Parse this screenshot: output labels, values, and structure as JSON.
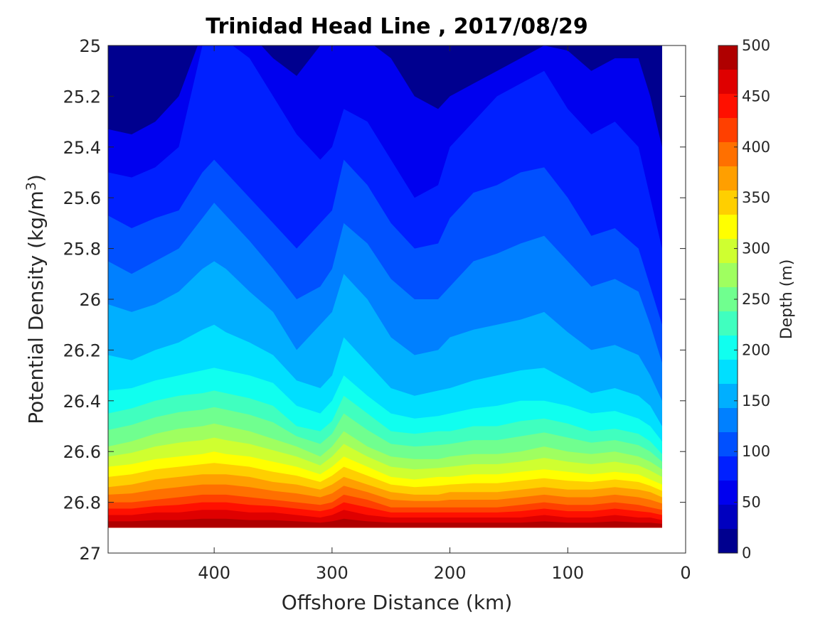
{
  "chart_data": {
    "type": "contour",
    "title": "Trinidad Head Line , 2017/08/29",
    "xlabel": "Offshore Distance (km)",
    "ylabel_main": "Potential Density (kg/m",
    "ylabel_sup": "3",
    "ylabel_close": ")",
    "colorbar_label": "Depth (m)",
    "xlim": [
      490,
      0
    ],
    "x_reversed": true,
    "x_ticks": [
      {
        "value": 400,
        "label": "400"
      },
      {
        "value": 300,
        "label": "300"
      },
      {
        "value": 200,
        "label": "200"
      },
      {
        "value": 100,
        "label": "100"
      },
      {
        "value": 0,
        "label": "0"
      }
    ],
    "ylim": [
      25,
      27
    ],
    "y_reversed": true,
    "y_ticks": [
      {
        "value": 25,
        "label": "25"
      },
      {
        "value": 25.2,
        "label": "25.2"
      },
      {
        "value": 25.4,
        "label": "25.4"
      },
      {
        "value": 25.6,
        "label": "25.6"
      },
      {
        "value": 25.8,
        "label": "25.8"
      },
      {
        "value": 26,
        "label": "26"
      },
      {
        "value": 26.2,
        "label": "26.2"
      },
      {
        "value": 26.4,
        "label": "26.4"
      },
      {
        "value": 26.6,
        "label": "26.6"
      },
      {
        "value": 26.8,
        "label": "26.8"
      },
      {
        "value": 27,
        "label": "27"
      }
    ],
    "colorbar_range": [
      0,
      500
    ],
    "colorbar_ticks": [
      {
        "value": 0,
        "label": "0"
      },
      {
        "value": 50,
        "label": "50"
      },
      {
        "value": 100,
        "label": "100"
      },
      {
        "value": 150,
        "label": "150"
      },
      {
        "value": 200,
        "label": "200"
      },
      {
        "value": 250,
        "label": "250"
      },
      {
        "value": 300,
        "label": "300"
      },
      {
        "value": 350,
        "label": "350"
      },
      {
        "value": 400,
        "label": "400"
      },
      {
        "value": 450,
        "label": "450"
      },
      {
        "value": 500,
        "label": "500"
      }
    ],
    "contour_step": 25,
    "colormap": "jet",
    "colormap_levels": [
      "#00008f",
      "#0000bf",
      "#0000ef",
      "#0020ff",
      "#0050ff",
      "#0080ff",
      "#00afff",
      "#00dfff",
      "#10ffef",
      "#40ffbf",
      "#70ff8f",
      "#9fff60",
      "#cfff30",
      "#ffff00",
      "#ffcf00",
      "#ff9f00",
      "#ff7000",
      "#ff4000",
      "#ff1000",
      "#df0000",
      "#af0000",
      "#800000"
    ],
    "station_x": [
      490,
      470,
      450,
      430,
      410,
      400,
      390,
      370,
      350,
      330,
      310,
      300,
      290,
      270,
      250,
      230,
      210,
      200,
      180,
      160,
      140,
      120,
      100,
      80,
      60,
      40,
      30,
      20
    ],
    "isopycnal_depth_contours": [
      {
        "depth": 25,
        "density": [
          25.33,
          25.35,
          25.3,
          25.2,
          24.95,
          24.9,
          24.92,
          24.95,
          25.05,
          25.12,
          25.0,
          25.0,
          24.95,
          24.98,
          25.05,
          25.2,
          25.25,
          25.2,
          25.15,
          25.1,
          25.05,
          25.0,
          25.02,
          25.1,
          25.05,
          25.05,
          25.2,
          25.4
        ]
      },
      {
        "depth": 50,
        "density": [
          25.5,
          25.52,
          25.48,
          25.4,
          25.0,
          24.95,
          24.98,
          25.05,
          25.2,
          25.35,
          25.45,
          25.4,
          25.25,
          25.3,
          25.45,
          25.6,
          25.55,
          25.4,
          25.3,
          25.2,
          25.15,
          25.1,
          25.25,
          25.35,
          25.3,
          25.4,
          25.6,
          25.8
        ]
      },
      {
        "depth": 75,
        "density": [
          25.67,
          25.72,
          25.68,
          25.65,
          25.5,
          25.45,
          25.5,
          25.6,
          25.7,
          25.8,
          25.7,
          25.65,
          25.45,
          25.55,
          25.7,
          25.8,
          25.78,
          25.68,
          25.58,
          25.55,
          25.5,
          25.48,
          25.6,
          25.75,
          25.72,
          25.8,
          25.95,
          26.1
        ]
      },
      {
        "depth": 100,
        "density": [
          25.85,
          25.9,
          25.85,
          25.8,
          25.68,
          25.62,
          25.67,
          25.77,
          25.88,
          26.0,
          25.95,
          25.88,
          25.7,
          25.78,
          25.92,
          26.0,
          26.0,
          25.95,
          25.85,
          25.82,
          25.78,
          25.75,
          25.85,
          25.95,
          25.92,
          25.97,
          26.1,
          26.25
        ]
      },
      {
        "depth": 125,
        "density": [
          26.02,
          26.05,
          26.02,
          25.97,
          25.88,
          25.85,
          25.88,
          25.97,
          26.05,
          26.2,
          26.1,
          26.05,
          25.9,
          26.0,
          26.15,
          26.22,
          26.2,
          26.15,
          26.12,
          26.1,
          26.08,
          26.05,
          26.13,
          26.2,
          26.18,
          26.22,
          26.3,
          26.4
        ]
      },
      {
        "depth": 150,
        "density": [
          26.22,
          26.24,
          26.2,
          26.17,
          26.12,
          26.1,
          26.13,
          26.17,
          26.22,
          26.32,
          26.35,
          26.3,
          26.15,
          26.25,
          26.35,
          26.38,
          26.36,
          26.35,
          26.32,
          26.3,
          26.28,
          26.27,
          26.32,
          26.37,
          26.35,
          26.38,
          26.42,
          26.5
        ]
      },
      {
        "depth": 175,
        "density": [
          26.36,
          26.35,
          26.32,
          26.3,
          26.28,
          26.27,
          26.28,
          26.3,
          26.33,
          26.42,
          26.45,
          26.4,
          26.3,
          26.38,
          26.45,
          26.47,
          26.46,
          26.45,
          26.43,
          26.42,
          26.4,
          26.4,
          26.42,
          26.45,
          26.44,
          26.47,
          26.5,
          26.56
        ]
      },
      {
        "depth": 200,
        "density": [
          26.45,
          26.43,
          26.4,
          26.38,
          26.37,
          26.36,
          26.37,
          26.39,
          26.42,
          26.5,
          26.52,
          26.48,
          26.38,
          26.45,
          26.52,
          26.53,
          26.52,
          26.52,
          26.5,
          26.5,
          26.48,
          26.47,
          26.49,
          26.52,
          26.51,
          26.53,
          26.56,
          26.61
        ]
      },
      {
        "depth": 250,
        "density": [
          26.58,
          26.56,
          26.53,
          26.51,
          26.5,
          26.49,
          26.5,
          26.52,
          26.55,
          26.58,
          26.62,
          26.58,
          26.52,
          26.58,
          26.62,
          26.63,
          26.63,
          26.62,
          26.61,
          26.61,
          26.6,
          26.58,
          26.6,
          26.61,
          26.6,
          26.62,
          26.64,
          26.67
        ]
      },
      {
        "depth": 300,
        "density": [
          26.66,
          26.65,
          26.63,
          26.62,
          26.61,
          26.6,
          26.61,
          26.62,
          26.64,
          26.66,
          26.69,
          26.66,
          26.62,
          26.66,
          26.7,
          26.71,
          26.7,
          26.7,
          26.69,
          26.69,
          26.68,
          26.67,
          26.68,
          26.69,
          26.68,
          26.69,
          26.71,
          26.73
        ]
      },
      {
        "depth": 350,
        "density": [
          26.74,
          26.73,
          26.71,
          26.7,
          26.69,
          26.69,
          26.69,
          26.7,
          26.72,
          26.73,
          26.75,
          26.73,
          26.7,
          26.73,
          26.76,
          26.77,
          26.77,
          26.76,
          26.76,
          26.76,
          26.75,
          26.74,
          26.75,
          26.75,
          26.74,
          26.75,
          26.76,
          26.78
        ]
      },
      {
        "depth": 400,
        "density": [
          26.8,
          26.8,
          26.79,
          26.78,
          26.77,
          26.77,
          26.77,
          26.78,
          26.79,
          26.8,
          26.81,
          26.8,
          26.77,
          26.79,
          26.82,
          26.82,
          26.82,
          26.82,
          26.82,
          26.82,
          26.81,
          26.8,
          26.81,
          26.81,
          26.8,
          26.81,
          26.82,
          26.83
        ]
      },
      {
        "depth": 450,
        "density": [
          26.85,
          26.85,
          26.84,
          26.84,
          26.83,
          26.83,
          26.83,
          26.84,
          26.84,
          26.85,
          26.86,
          26.85,
          26.83,
          26.85,
          26.86,
          26.86,
          26.86,
          26.86,
          26.86,
          26.86,
          26.86,
          26.85,
          26.86,
          26.86,
          26.85,
          26.86,
          26.86,
          26.87
        ]
      },
      {
        "depth": 500,
        "density": [
          26.9,
          26.9,
          26.9,
          26.9,
          26.9,
          26.9,
          26.9,
          26.9,
          26.9,
          26.9,
          26.9,
          26.9,
          26.9,
          26.9,
          26.9,
          26.9,
          26.9,
          26.9,
          26.9,
          26.9,
          26.9,
          26.9,
          26.9,
          26.9,
          26.9,
          26.9,
          26.9,
          26.9
        ]
      }
    ],
    "grid": false
  }
}
